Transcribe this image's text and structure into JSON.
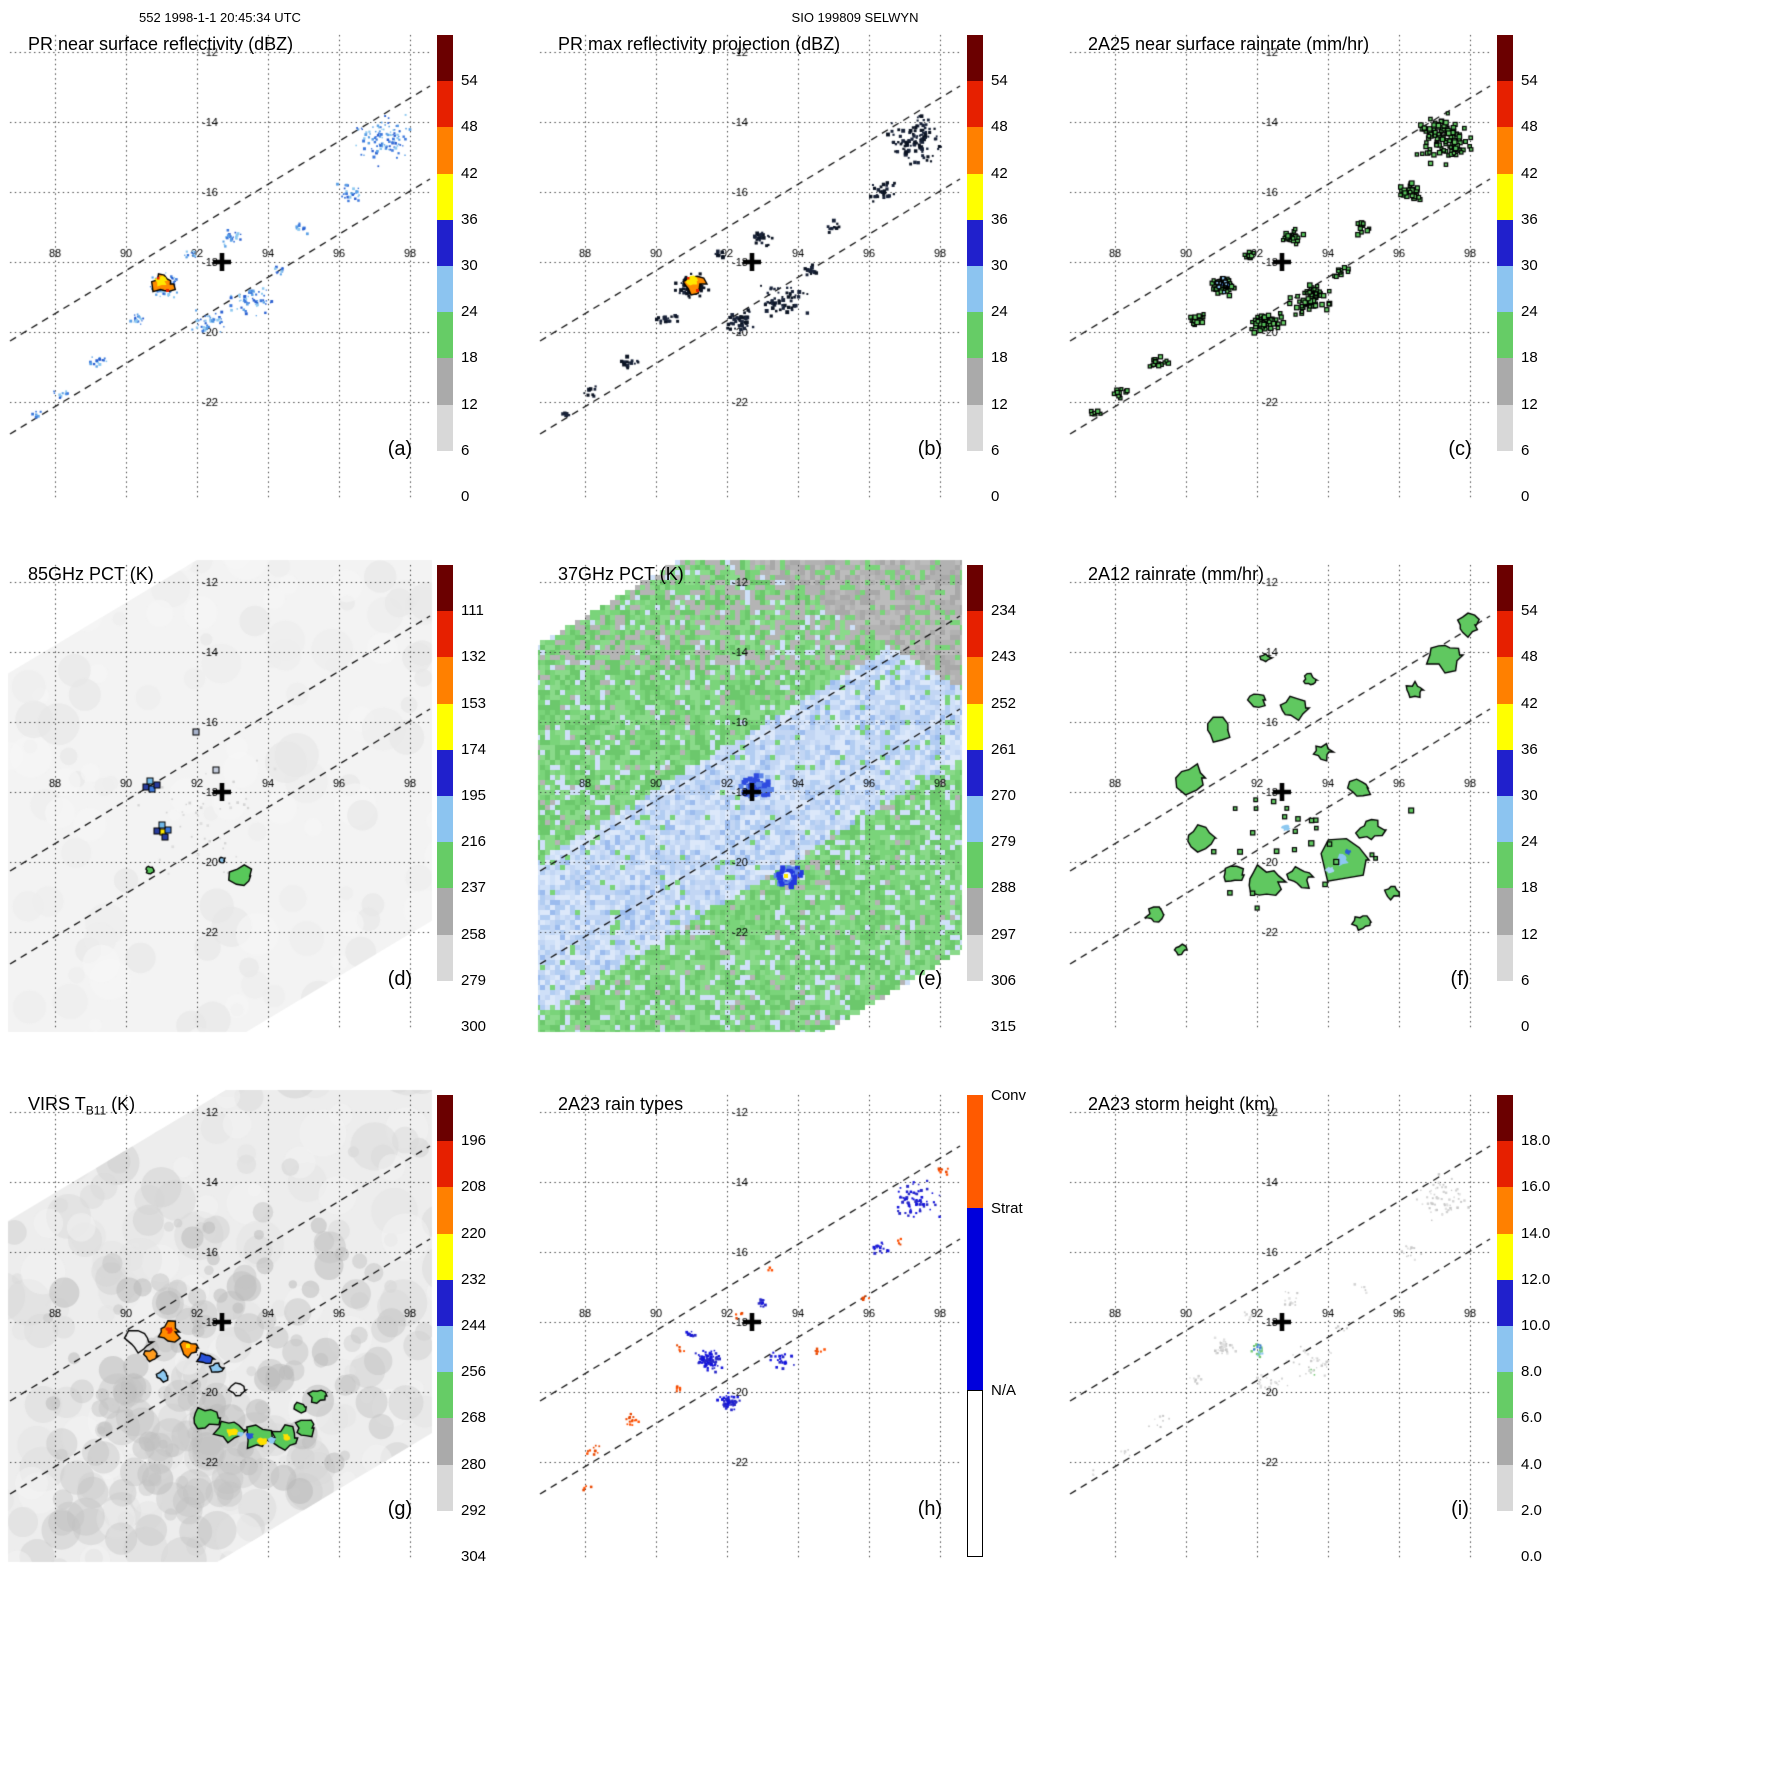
{
  "header": {
    "left": "552 1998-1-1 20:45:34 UTC",
    "center": "SIO 199809 SELWYN"
  },
  "grid": {
    "lon_labels": [
      "88",
      "90",
      "92",
      "94",
      "96",
      "98"
    ],
    "lat_labels": [
      "-12",
      "-14",
      "-16",
      "-18",
      "-20",
      "-22"
    ]
  },
  "palette": {
    "scale_colors_top_to_bottom": [
      "#6b0000",
      "#e62000",
      "#ff8000",
      "#ffff00",
      "#2020cc",
      "#8cc4f0",
      "#66cc66",
      "#aaaaaa",
      "#d8d8d8",
      "#ffffff"
    ],
    "raintype_colors": [
      "#ff5a00",
      "#0000dc",
      "#ffffff"
    ]
  },
  "panels": [
    {
      "letter": "(a)",
      "title_pre": "PR near surface reflectivity (dBZ)",
      "title_sub": "",
      "title_post": "",
      "pattern": "refl_blue",
      "colorbar": {
        "type": "scale",
        "ticks": [
          "54",
          "48",
          "42",
          "36",
          "30",
          "24",
          "18",
          "12",
          "6",
          "0"
        ]
      }
    },
    {
      "letter": "(b)",
      "title_pre": "PR max reflectivity projection (dBZ)",
      "title_sub": "",
      "title_post": "",
      "pattern": "refl_black",
      "colorbar": {
        "type": "scale",
        "ticks": [
          "54",
          "48",
          "42",
          "36",
          "30",
          "24",
          "18",
          "12",
          "6",
          "0"
        ]
      }
    },
    {
      "letter": "(c)",
      "title_pre": "2A25 near surface rainrate (mm/hr)",
      "title_sub": "",
      "title_post": "",
      "pattern": "rain_green",
      "colorbar": {
        "type": "scale",
        "ticks": [
          "54",
          "48",
          "42",
          "36",
          "30",
          "24",
          "18",
          "12",
          "6",
          "0"
        ]
      }
    },
    {
      "letter": "(d)",
      "title_pre": "85GHz PCT (K)",
      "title_sub": "",
      "title_post": "",
      "pattern": "pct85",
      "colorbar": {
        "type": "scale",
        "ticks": [
          "111",
          "132",
          "153",
          "174",
          "195",
          "216",
          "237",
          "258",
          "279",
          "300"
        ]
      }
    },
    {
      "letter": "(e)",
      "title_pre": "37GHz PCT (K)",
      "title_sub": "",
      "title_post": "",
      "pattern": "pct37",
      "colorbar": {
        "type": "scale",
        "ticks": [
          "234",
          "243",
          "252",
          "261",
          "270",
          "279",
          "288",
          "297",
          "306",
          "315"
        ]
      }
    },
    {
      "letter": "(f)",
      "title_pre": "2A12 rainrate (mm/hr)",
      "title_sub": "",
      "title_post": "",
      "pattern": "tmi_rain",
      "colorbar": {
        "type": "scale",
        "ticks": [
          "54",
          "48",
          "42",
          "36",
          "30",
          "24",
          "18",
          "12",
          "6",
          "0"
        ]
      }
    },
    {
      "letter": "(g)",
      "title_pre": "VIRS T",
      "title_sub": "B11",
      "title_post": " (K)",
      "pattern": "virs",
      "colorbar": {
        "type": "scale",
        "ticks": [
          "196",
          "208",
          "220",
          "232",
          "244",
          "256",
          "268",
          "280",
          "292",
          "304"
        ]
      }
    },
    {
      "letter": "(h)",
      "title_pre": "2A23 rain types",
      "title_sub": "",
      "title_post": "",
      "pattern": "raintypes",
      "colorbar": {
        "type": "raintype",
        "labels": [
          "Conv",
          "Strat",
          "N/A"
        ]
      }
    },
    {
      "letter": "(i)",
      "title_pre": "2A23 storm height (km)",
      "title_sub": "",
      "title_post": "",
      "pattern": "stormheight",
      "colorbar": {
        "type": "scale",
        "ticks": [
          "18.0",
          "16.0",
          "14.0",
          "12.0",
          "10.0",
          "8.0",
          "6.0",
          "4.0",
          "2.0",
          "0.0"
        ]
      }
    }
  ],
  "chart_data": [
    {
      "panel": "a",
      "type": "heatmap",
      "title": "PR near surface reflectivity (dBZ)",
      "units": "dBZ",
      "colorbar_ticks": [
        0,
        6,
        12,
        18,
        24,
        30,
        36,
        42,
        48,
        54
      ],
      "lon_ticks": [
        88,
        90,
        92,
        94,
        96,
        98
      ],
      "lat_ticks": [
        -22,
        -20,
        -18,
        -16,
        -14,
        -12
      ],
      "storm_center_lon_lat": [
        92.7,
        -18.3
      ],
      "summary": "Scattered echoes 18-35 dBZ along the TRMM swath; intense convective cell >42 dBZ near 90.8E 18.4S; rainband arc near 96-97.5E 14-16S"
    },
    {
      "panel": "b",
      "type": "heatmap",
      "title": "PR max reflectivity projection (dBZ)",
      "units": "dBZ",
      "colorbar_ticks": [
        0,
        6,
        12,
        18,
        24,
        30,
        36,
        42,
        48,
        54
      ],
      "lon_ticks": [
        88,
        90,
        92,
        94,
        96,
        98
      ],
      "lat_ticks": [
        -22,
        -20,
        -18,
        -16,
        -14,
        -12
      ],
      "storm_center_lon_lat": [
        92.7,
        -18.3
      ],
      "summary": "Same echo field as max reflectivity projection; dense dark (>=30 dBZ) speckles with convective core >42 dBZ near 90.8E 18.4S"
    },
    {
      "panel": "c",
      "type": "heatmap",
      "title": "2A25 near surface rainrate (mm/hr)",
      "units": "mm/hr",
      "colorbar_ticks": [
        0,
        6,
        12,
        18,
        24,
        30,
        36,
        42,
        48,
        54
      ],
      "lon_ticks": [
        88,
        90,
        92,
        94,
        96,
        98
      ],
      "lat_ticks": [
        -22,
        -20,
        -18,
        -16,
        -14,
        -12
      ],
      "storm_center_lon_lat": [
        92.7,
        -18.3
      ],
      "summary": "Light rain (<=6 mm/hr, green) outlined speckles tracing the same echo clusters along the swath"
    },
    {
      "panel": "d",
      "type": "heatmap",
      "title": "85GHz PCT (K)",
      "units": "K",
      "colorbar_ticks": [
        111,
        132,
        153,
        174,
        195,
        216,
        237,
        258,
        279,
        300
      ],
      "lon_ticks": [
        88,
        90,
        92,
        94,
        96,
        98
      ],
      "lat_ticks": [
        -22,
        -20,
        -18,
        -16,
        -14,
        -12
      ],
      "storm_center_lon_lat": [
        92.7,
        -18.3
      ],
      "summary": "Mostly warm PCT ~280-300 K (near white); small ice-scattering depressions <220 K near 90.6E 18.3S and 90.9E 18.9S; ~237 K green patch near 92.2E 19.5S"
    },
    {
      "panel": "e",
      "type": "heatmap",
      "title": "37GHz PCT (K)",
      "units": "K",
      "colorbar_ticks": [
        234,
        243,
        252,
        261,
        270,
        279,
        288,
        297,
        306,
        315
      ],
      "lon_ticks": [
        88,
        90,
        92,
        94,
        96,
        98
      ],
      "lat_ticks": [
        -22,
        -20,
        -18,
        -16,
        -14,
        -12
      ],
      "storm_center_lon_lat": [
        92.7,
        -18.3
      ],
      "summary": "Full-swath field: light blue ~270-285 K central band, green ~285-292 K elsewhere, gray >295 K in NE corner; coldest blue spots ~250-265 K near 92.3E 18.0S and 92.6E 19.9S"
    },
    {
      "panel": "f",
      "type": "heatmap",
      "title": "2A12 rainrate (mm/hr)",
      "units": "mm/hr",
      "colorbar_ticks": [
        0,
        6,
        12,
        18,
        24,
        30,
        36,
        42,
        48,
        54
      ],
      "lon_ticks": [
        88,
        90,
        92,
        94,
        96,
        98
      ],
      "lat_ticks": [
        -22,
        -20,
        -18,
        -16,
        -14,
        -12
      ],
      "storm_center_lon_lat": [
        92.7,
        -18.3
      ],
      "summary": "TMI rainrate: broken cyclonic rainbands of light rain (<=6 mm/hr, green, black-contoured) spiraling about the center with embedded 12-24 mm/hr cells"
    },
    {
      "panel": "g",
      "type": "heatmap",
      "title": "VIRS TB11 (K)",
      "units": "K",
      "colorbar_ticks": [
        196,
        208,
        220,
        232,
        244,
        256,
        268,
        280,
        292,
        304
      ],
      "lon_ticks": [
        88,
        90,
        92,
        94,
        96,
        98
      ],
      "lat_ticks": [
        -22,
        -20,
        -18,
        -16,
        -14,
        -12
      ],
      "storm_center_lon_lat": [
        92.7,
        -18.3
      ],
      "summary": "Gray cloud-top field; cold tops: orange <232 K cluster west of center near 90.8E 18.5S, green/yellow/blue band 232-268 K southeast of center near 92-93.5E 19.5-20S"
    },
    {
      "panel": "h",
      "type": "heatmap",
      "title": "2A23 rain types",
      "units": "category",
      "categories": [
        "Conv",
        "Strat",
        "N/A"
      ],
      "lon_ticks": [
        88,
        90,
        92,
        94,
        96,
        98
      ],
      "lat_ticks": [
        -22,
        -20,
        -18,
        -16,
        -14,
        -12
      ],
      "storm_center_lon_lat": [
        92.7,
        -18.3
      ],
      "summary": "Mostly stratiform (blue) pixels in the main clusters and NE rainband; scattered convective (orange) pixels along band edges and SW swath"
    },
    {
      "panel": "i",
      "type": "heatmap",
      "title": "2A23 storm height (km)",
      "units": "km",
      "colorbar_ticks": [
        0.0,
        2.0,
        4.0,
        6.0,
        8.0,
        10.0,
        12.0,
        14.0,
        16.0,
        18.0
      ],
      "lon_ticks": [
        88,
        90,
        92,
        94,
        96,
        98
      ],
      "lat_ticks": [
        -22,
        -20,
        -18,
        -16,
        -14,
        -12
      ],
      "storm_center_lon_lat": [
        92.7,
        -18.3
      ],
      "summary": "Echo tops mostly 2-6 km (pale gray/green); isolated 8-12 km tops (green/blue) near 91E 18.5S"
    }
  ]
}
